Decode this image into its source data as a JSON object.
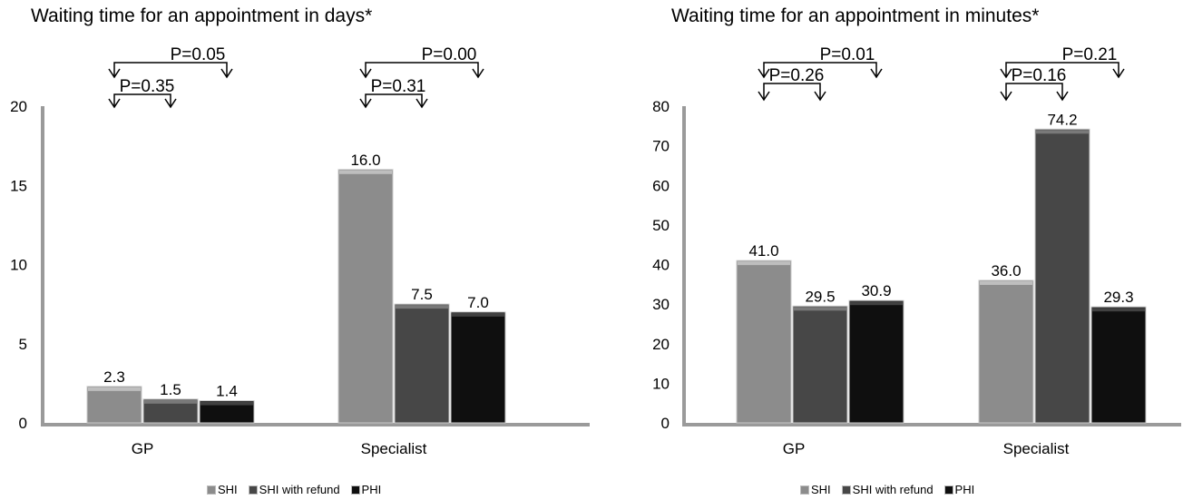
{
  "chart_data": [
    {
      "type": "bar",
      "title": "Waiting time for an appointment in days*",
      "categories": [
        "GP",
        "Specialist"
      ],
      "series": [
        {
          "name": "SHI",
          "values": [
            2.3,
            16.0
          ],
          "labels": [
            "2.3",
            "16.0"
          ],
          "color": "#8c8c8c"
        },
        {
          "name": "SHI with refund",
          "values": [
            1.5,
            7.5
          ],
          "labels": [
            "1.5",
            "7.5"
          ],
          "color": "#474747"
        },
        {
          "name": "PHI",
          "values": [
            1.4,
            7.0
          ],
          "labels": [
            "1.4",
            "7.0"
          ],
          "color": "#0f0f0f"
        }
      ],
      "ylim": [
        0,
        20
      ],
      "yticks": [
        "0",
        "5",
        "10",
        "15",
        "20"
      ],
      "grid": false,
      "legend": "bottom",
      "comparisons": [
        {
          "category": "GP",
          "from": "SHI",
          "to": "PHI",
          "label": "P=0.05"
        },
        {
          "category": "GP",
          "from": "SHI",
          "to": "SHI with refund",
          "label": "P=0.35"
        },
        {
          "category": "Specialist",
          "from": "SHI",
          "to": "PHI",
          "label": "P=0.00"
        },
        {
          "category": "Specialist",
          "from": "SHI",
          "to": "SHI with refund",
          "label": "P=0.31"
        }
      ]
    },
    {
      "type": "bar",
      "title": "Waiting time for an appointment in minutes*",
      "categories": [
        "GP",
        "Specialist"
      ],
      "series": [
        {
          "name": "SHI",
          "values": [
            41.0,
            36.0
          ],
          "labels": [
            "41.0",
            "36.0"
          ],
          "color": "#8c8c8c"
        },
        {
          "name": "SHI with refund",
          "values": [
            29.5,
            74.2
          ],
          "labels": [
            "29.5",
            "74.2"
          ],
          "color": "#474747"
        },
        {
          "name": "PHI",
          "values": [
            30.9,
            29.3
          ],
          "labels": [
            "30.9",
            "29.3"
          ],
          "color": "#0f0f0f"
        }
      ],
      "ylim": [
        0,
        80
      ],
      "yticks": [
        "0",
        "10",
        "20",
        "30",
        "40",
        "50",
        "60",
        "70",
        "80"
      ],
      "grid": false,
      "legend": "bottom",
      "comparisons": [
        {
          "category": "GP",
          "from": "SHI",
          "to": "PHI",
          "label": "P=0.01"
        },
        {
          "category": "GP",
          "from": "SHI",
          "to": "SHI with refund",
          "label": "P=0.26"
        },
        {
          "category": "Specialist",
          "from": "SHI",
          "to": "PHI",
          "label": "P=0.21"
        },
        {
          "category": "Specialist",
          "from": "SHI",
          "to": "SHI with refund",
          "label": "P=0.16"
        }
      ]
    }
  ]
}
